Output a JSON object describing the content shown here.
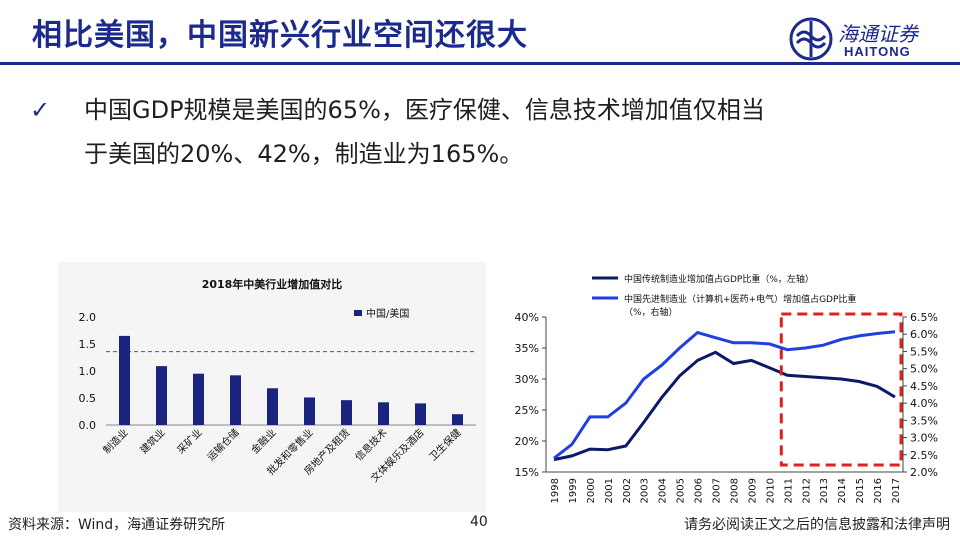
{
  "header": {
    "title": "相比美国，中国新兴行业空间还很大",
    "logo_cn": "海通证券",
    "logo_en": "HAITONG"
  },
  "bullet": {
    "line1": "中国GDP规模是美国的65%，医疗保健、信息技术增加值仅相当",
    "line2": "于美国的20%、42%，制造业为165%。"
  },
  "footer": {
    "source": "资料来源：Wind，海通证券研究所",
    "page": "40",
    "disclaimer": "请务必阅读正文之后的信息披露和法律声明"
  },
  "colors": {
    "brand": "#1b2a8c",
    "bar": "#1a237e",
    "line_traditional": "#0b1a66",
    "line_advanced": "#1f3fe0",
    "highlight_box": "#e02020",
    "reference_line": "#4a6fb5"
  },
  "chart_data": [
    {
      "type": "bar",
      "title": "2018年中美行业增加值对比",
      "categories": [
        "制造业",
        "建筑业",
        "采矿业",
        "运输仓储",
        "金融业",
        "批发和零售业",
        "房地产及租赁",
        "信息技术",
        "文体娱乐及酒店",
        "卫生保健"
      ],
      "series": [
        {
          "name": "中国/美国",
          "values": [
            1.65,
            1.09,
            0.95,
            0.92,
            0.68,
            0.51,
            0.46,
            0.42,
            0.4,
            0.2
          ]
        }
      ],
      "reference_line": 1.36,
      "ylim": [
        0,
        2.0
      ],
      "yticks": [
        "0.0",
        "0.5",
        "1.0",
        "1.5",
        "2.0"
      ],
      "legend_position": "top-right"
    },
    {
      "type": "line",
      "x": [
        "1998",
        "1999",
        "2000",
        "2001",
        "2002",
        "2003",
        "2004",
        "2005",
        "2006",
        "2007",
        "2008",
        "2009",
        "2010",
        "2011",
        "2012",
        "2013",
        "2014",
        "2015",
        "2016",
        "2017"
      ],
      "series": [
        {
          "name": "中国传统制造业增加值占GDP比重（%，左轴）",
          "axis": "left",
          "values": [
            17.0,
            17.6,
            18.7,
            18.6,
            19.2,
            23.0,
            27.0,
            30.5,
            33.0,
            34.3,
            32.5,
            33.0,
            31.8,
            30.6,
            30.4,
            30.2,
            30.0,
            29.6,
            28.8,
            27.1
          ]
        },
        {
          "name": "中国先进制造业（计算机+医药+电气）增加值占GDP比重（%，右轴）",
          "axis": "right",
          "values": [
            2.4,
            2.8,
            3.6,
            3.6,
            4.0,
            4.7,
            5.1,
            5.6,
            6.05,
            5.9,
            5.75,
            5.75,
            5.72,
            5.55,
            5.6,
            5.68,
            5.85,
            5.95,
            6.02,
            6.07
          ]
        }
      ],
      "y_left_ticks": [
        "15%",
        "20%",
        "25%",
        "30%",
        "35%",
        "40%"
      ],
      "y_right_ticks": [
        "2.0%",
        "2.5%",
        "3.0%",
        "3.5%",
        "4.0%",
        "4.5%",
        "5.0%",
        "5.5%",
        "6.0%",
        "6.5%"
      ],
      "ylim_left": [
        15,
        40
      ],
      "ylim_right": [
        2.0,
        6.5
      ],
      "highlight_range": [
        "2011",
        "2017"
      ],
      "legend_position": "top"
    }
  ]
}
